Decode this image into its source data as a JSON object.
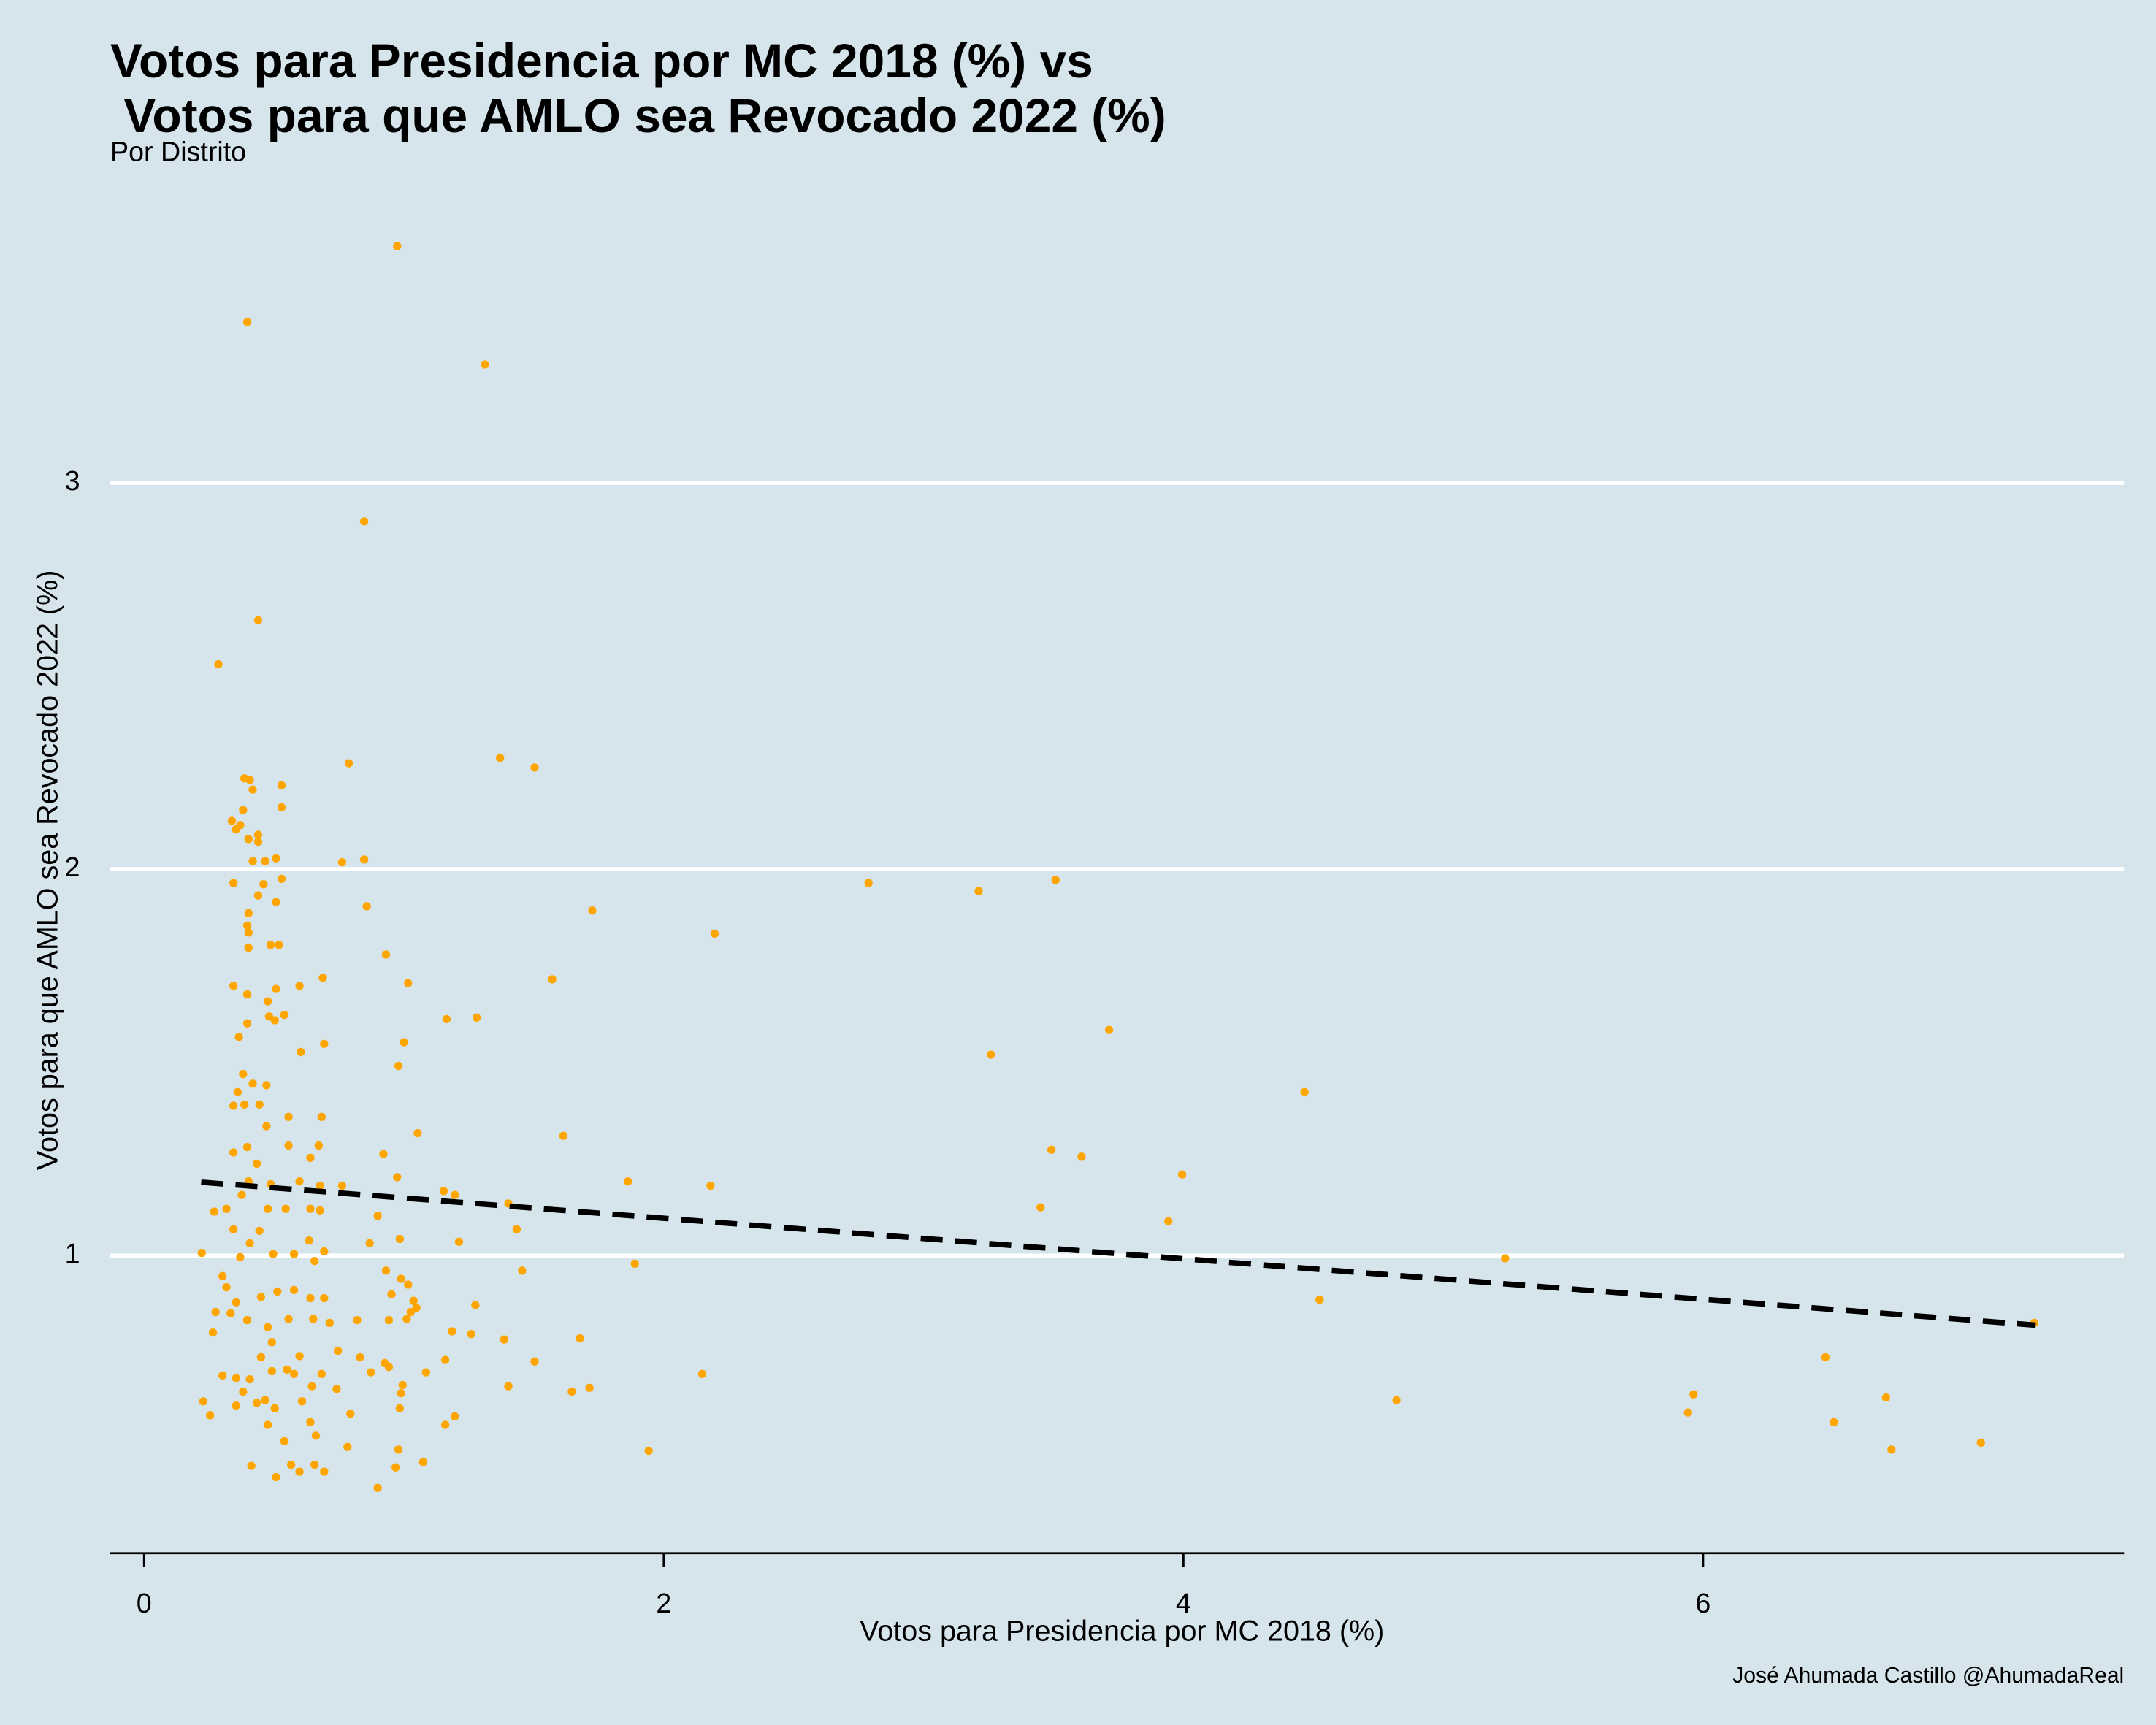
{
  "chart_data": {
    "type": "scatter",
    "title": [
      "Votos para Presidencia por MC 2018 (%) vs",
      " Votos para que AMLO sea Revocado 2022 (%)"
    ],
    "subtitle": "Por Distrito",
    "xlabel": "Votos para Presidencia por MC 2018 (%)",
    "ylabel": "Votos para que AMLO sea Revocado 2022 (%)",
    "caption": "José Ahumada Castillo @AhumadaReal",
    "xlim": [
      -0.13,
      7.62
    ],
    "ylim": [
      0.23,
      3.68
    ],
    "xticks": [
      0,
      2,
      4,
      6
    ],
    "yticks": [
      1,
      2,
      3
    ],
    "grid": "y",
    "color": "#ffa500",
    "x": [
      0.974,
      0.397,
      1.312,
      0.847,
      0.439,
      0.286,
      1.37,
      1.503,
      0.788,
      2.788,
      3.212,
      3.508,
      1.725,
      2.196,
      1.571,
      3.714,
      3.259,
      4.466,
      1.614,
      3.492,
      3.608,
      3.995,
      1.862,
      2.18,
      3.45,
      3.942,
      5.238,
      1.889,
      4.524,
      4.82,
      5.963,
      5.942,
      6.471,
      6.503,
      6.704,
      6.725,
      7.069,
      7.275,
      2.148,
      1.942,
      1.646,
      1.714,
      1.677,
      1.503,
      1.402,
      1.386,
      1.455,
      1.434,
      1.402,
      1.275,
      1.259,
      1.185,
      1.159,
      1.196,
      1.159,
      1.212,
      1.196,
      1.153,
      1.053,
      1.164,
      1.28,
      1.016,
      1.0,
      0.979,
      0.931,
      0.857,
      0.847,
      0.762,
      0.921,
      0.974,
      0.984,
      0.899,
      0.868,
      0.931,
      0.989,
      0.952,
      1.016,
      1.037,
      1.026,
      1.048,
      1.011,
      0.942,
      0.926,
      0.942,
      0.995,
      0.989,
      0.984,
      1.085,
      1.074,
      0.979,
      0.968,
      0.899,
      0.873,
      0.831,
      0.82,
      0.794,
      0.783,
      0.741,
      0.746,
      0.714,
      0.762,
      0.693,
      0.656,
      0.661,
      0.64,
      0.608,
      0.598,
      0.566,
      0.54,
      0.508,
      0.413,
      0.476,
      0.503,
      0.466,
      0.434,
      0.381,
      0.354,
      0.254,
      0.228,
      0.302,
      0.354,
      0.407,
      0.492,
      0.55,
      0.577,
      0.646,
      0.683,
      0.598,
      0.45,
      0.492,
      0.265,
      0.333,
      0.275,
      0.397,
      0.476,
      0.556,
      0.651,
      0.693,
      0.64,
      0.577,
      0.513,
      0.45,
      0.354,
      0.302,
      0.317,
      0.37,
      0.222,
      0.407,
      0.497,
      0.577,
      0.656,
      0.693,
      0.635,
      0.444,
      0.344,
      0.27,
      0.317,
      0.376,
      0.476,
      0.545,
      0.64,
      0.677,
      0.487,
      0.402,
      0.598,
      0.677,
      0.397,
      0.434,
      0.344,
      0.556,
      0.672,
      0.64,
      0.471,
      0.556,
      0.683,
      0.344,
      0.386,
      0.444,
      0.471,
      0.381,
      0.36,
      0.418,
      0.603,
      0.693,
      0.365,
      0.397,
      0.481,
      0.503,
      0.54,
      0.476,
      0.397,
      0.344,
      0.508,
      0.598,
      0.688,
      0.402,
      0.487,
      0.519,
      0.402,
      0.397,
      0.402,
      0.508,
      0.439,
      0.344,
      0.46,
      0.529,
      0.418,
      0.466,
      0.508,
      0.439,
      0.402,
      0.354,
      0.37,
      0.338,
      0.381,
      0.439,
      0.529,
      0.418,
      0.529,
      0.386,
      0.407
    ],
    "values": [
      3.612,
      3.416,
      3.306,
      2.9,
      2.644,
      2.53,
      2.288,
      2.263,
      2.274,
      1.964,
      1.943,
      1.972,
      1.893,
      1.833,
      1.715,
      1.584,
      1.52,
      1.423,
      1.31,
      1.274,
      1.256,
      1.21,
      1.192,
      1.181,
      1.125,
      1.089,
      0.993,
      0.979,
      0.886,
      0.626,
      0.641,
      0.594,
      0.737,
      0.569,
      0.633,
      0.498,
      0.516,
      0.826,
      0.694,
      0.495,
      0.648,
      0.658,
      0.786,
      0.726,
      0.662,
      0.783,
      0.961,
      1.068,
      1.135,
      0.872,
      0.797,
      0.804,
      0.562,
      0.584,
      0.73,
      1.036,
      1.157,
      1.167,
      1.317,
      1.612,
      1.616,
      1.705,
      1.552,
      1.491,
      1.779,
      1.904,
      2.025,
      2.018,
      1.263,
      1.203,
      1.043,
      1.103,
      1.032,
      0.961,
      0.94,
      0.9,
      0.925,
      0.883,
      0.854,
      0.865,
      0.836,
      0.833,
      0.722,
      0.712,
      0.665,
      0.644,
      0.605,
      0.698,
      0.466,
      0.498,
      0.452,
      0.399,
      0.698,
      0.737,
      0.833,
      0.591,
      0.505,
      0.655,
      0.754,
      0.826,
      1.181,
      0.441,
      0.459,
      0.534,
      0.569,
      0.623,
      0.441,
      0.459,
      0.52,
      0.427,
      0.456,
      0.562,
      0.605,
      0.626,
      0.619,
      0.648,
      0.612,
      0.587,
      0.623,
      0.69,
      0.683,
      0.68,
      0.701,
      0.705,
      0.694,
      0.662,
      0.694,
      0.74,
      0.737,
      0.776,
      0.801,
      0.851,
      0.854,
      0.833,
      0.815,
      0.836,
      0.836,
      0.89,
      0.89,
      0.911,
      0.907,
      0.893,
      0.879,
      0.947,
      0.918,
      0.996,
      1.007,
      1.032,
      1.004,
      1.004,
      0.986,
      1.011,
      1.039,
      1.064,
      1.068,
      1.114,
      1.121,
      1.157,
      1.121,
      1.121,
      1.121,
      1.117,
      1.185,
      1.192,
      1.192,
      1.181,
      1.281,
      1.238,
      1.267,
      1.285,
      1.285,
      1.253,
      1.335,
      1.359,
      1.359,
      1.388,
      1.391,
      1.391,
      1.441,
      1.47,
      1.423,
      1.445,
      1.527,
      1.548,
      1.566,
      1.601,
      1.619,
      1.609,
      1.623,
      1.658,
      1.676,
      1.698,
      1.69,
      1.698,
      1.719,
      1.797,
      1.804,
      1.804,
      1.836,
      1.854,
      1.886,
      1.915,
      1.932,
      1.964,
      1.961,
      1.975,
      2.021,
      2.021,
      2.028,
      2.071,
      2.078,
      2.103,
      2.114,
      2.125,
      2.153,
      2.089,
      2.16,
      2.206,
      2.217,
      2.235,
      2.231
    ],
    "trend": {
      "x": [
        0.22,
        7.28
      ],
      "values": [
        1.19,
        0.82
      ]
    }
  }
}
